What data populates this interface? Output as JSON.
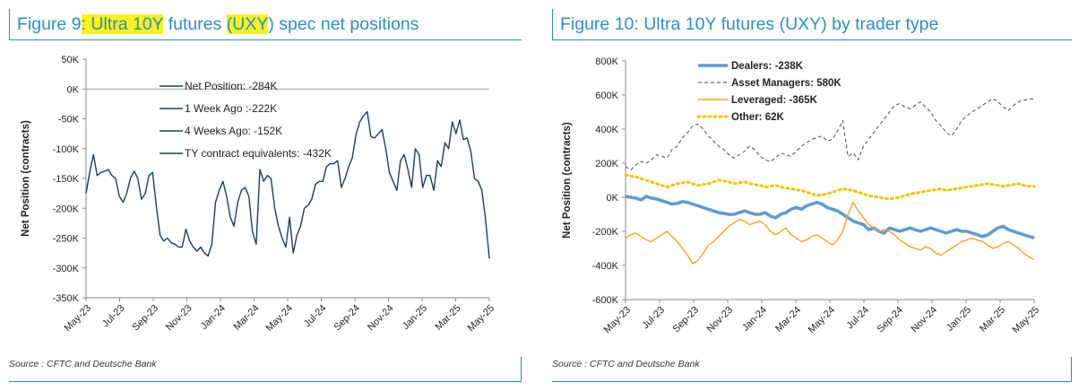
{
  "panels": [
    {
      "title_parts": [
        {
          "text": "Figure 9",
          "highlight": false
        },
        {
          "text": ": Ultra 10Y",
          "highlight": true
        },
        {
          "text": " futures ",
          "highlight": false
        },
        {
          "text": "(UXY",
          "highlight": true
        },
        {
          "text": ") spec net positions",
          "highlight": false
        }
      ],
      "source": "Source : CFTC and Deutsche Bank"
    },
    {
      "title_parts": [
        {
          "text": "Figure 10: Ultra 10Y futures (UXY) by trader type",
          "highlight": false
        }
      ],
      "source": "Source : CFTC and Deutsche Bank"
    }
  ],
  "chart_data": [
    {
      "type": "line",
      "title": "Figure 9: Ultra 10Y futures (UXY) spec net positions",
      "ylabel": "Net Position (contracts)",
      "xlabel": "",
      "ylim": [
        -350,
        50
      ],
      "yticks": [
        50,
        0,
        -50,
        -100,
        -150,
        -200,
        -250,
        -300,
        -350
      ],
      "ytick_labels": [
        "50K",
        "0K",
        "-50K",
        "-100K",
        "-150K",
        "-200K",
        "-250K",
        "-300K",
        "-350K"
      ],
      "xticks": [
        "May-23",
        "Jul-23",
        "Sep-23",
        "Nov-23",
        "Jan-24",
        "Mar-24",
        "May-24",
        "Jul-24",
        "Sep-24",
        "Nov-24",
        "Jan-25",
        "Mar-25",
        "May-25"
      ],
      "x_start": "2023-05",
      "x_end": "2025-05",
      "zero_line": true,
      "legend_placement": "top-center",
      "legend": [
        "Net Position: -284K",
        "1 Week Ago :-222K",
        "4 Weeks Ago: -152K",
        "TY contract equivalents: -432K"
      ],
      "line_color": "#1f3d5c",
      "series": [
        {
          "name": "Net Position: -284K",
          "values": [
            -175,
            -140,
            -110,
            -145,
            -140,
            -138,
            -135,
            -145,
            -150,
            -180,
            -190,
            -175,
            -150,
            -138,
            -150,
            -185,
            -175,
            -145,
            -140,
            -195,
            -245,
            -255,
            -250,
            -258,
            -260,
            -265,
            -265,
            -235,
            -255,
            -265,
            -272,
            -265,
            -275,
            -280,
            -260,
            -190,
            -170,
            -155,
            -180,
            -215,
            -230,
            -190,
            -170,
            -165,
            -180,
            -240,
            -260,
            -135,
            -155,
            -145,
            -150,
            -200,
            -230,
            -250,
            -265,
            -215,
            -275,
            -245,
            -230,
            -200,
            -195,
            -185,
            -160,
            -155,
            -155,
            -130,
            -125,
            -125,
            -120,
            -165,
            -150,
            -130,
            -115,
            -75,
            -55,
            -45,
            -38,
            -80,
            -82,
            -75,
            -68,
            -100,
            -140,
            -155,
            -170,
            -120,
            -110,
            -135,
            -165,
            -100,
            -110,
            -165,
            -145,
            -145,
            -170,
            -120,
            -130,
            -90,
            -100,
            -55,
            -75,
            -52,
            -85,
            -82,
            -105,
            -150,
            -155,
            -170,
            -220,
            -284
          ]
        }
      ]
    },
    {
      "type": "line",
      "title": "Figure 10: Ultra 10Y futures (UXY) by trader type",
      "ylabel": "Net Position (contracts)",
      "xlabel": "",
      "ylim": [
        -600,
        800
      ],
      "yticks": [
        800,
        600,
        400,
        200,
        0,
        -200,
        -400,
        -600
      ],
      "ytick_labels": [
        "800K",
        "600K",
        "400K",
        "200K",
        "0K",
        "-200K",
        "-400K",
        "-600K"
      ],
      "xticks": [
        "May-23",
        "Jul-23",
        "Sep-23",
        "Nov-23",
        "Jan-24",
        "Mar-24",
        "May-24",
        "Jul-24",
        "Sep-24",
        "Nov-24",
        "Jan-25",
        "Mar-25",
        "May-25"
      ],
      "x_start": "2023-05",
      "x_end": "2025-05",
      "legend_placement": "top-left",
      "series": [
        {
          "name": "Dealers: -238K",
          "color": "#5b9bd5",
          "style": "solid-thick",
          "values": [
            5,
            0,
            -5,
            -15,
            5,
            -5,
            -10,
            -20,
            -30,
            -40,
            -35,
            -25,
            -30,
            -40,
            -50,
            -60,
            -70,
            -80,
            -90,
            -95,
            -100,
            -100,
            -90,
            -80,
            -90,
            -100,
            -100,
            -90,
            -110,
            -120,
            -100,
            -90,
            -70,
            -60,
            -70,
            -50,
            -40,
            -30,
            -40,
            -60,
            -70,
            -80,
            -100,
            -120,
            -140,
            -150,
            -160,
            -190,
            -180,
            -200,
            -210,
            -180,
            -190,
            -200,
            -190,
            -180,
            -190,
            -200,
            -190,
            -180,
            -190,
            -200,
            -210,
            -200,
            -190,
            -200,
            -200,
            -210,
            -220,
            -230,
            -220,
            -200,
            -180,
            -170,
            -190,
            -200,
            -210,
            -220,
            -230,
            -238
          ]
        },
        {
          "name": "Asset Managers: 580K",
          "color": "#4a4a4a",
          "style": "dashed",
          "values": [
            180,
            160,
            190,
            210,
            200,
            220,
            250,
            240,
            230,
            280,
            300,
            350,
            380,
            420,
            430,
            400,
            360,
            330,
            300,
            280,
            250,
            230,
            250,
            270,
            300,
            280,
            240,
            220,
            210,
            230,
            260,
            250,
            240,
            270,
            300,
            320,
            340,
            350,
            360,
            330,
            340,
            390,
            450,
            240,
            260,
            220,
            300,
            340,
            380,
            420,
            460,
            500,
            540,
            550,
            530,
            520,
            540,
            560,
            530,
            500,
            450,
            420,
            380,
            360,
            400,
            450,
            480,
            500,
            520,
            540,
            560,
            580,
            560,
            530,
            510,
            540,
            560,
            570,
            575,
            580
          ]
        },
        {
          "name": "Leveraged: -365K",
          "color": "#f2a31b",
          "style": "solid-thin",
          "values": [
            -240,
            -220,
            -210,
            -230,
            -250,
            -260,
            -240,
            -220,
            -200,
            -230,
            -260,
            -300,
            -340,
            -390,
            -370,
            -330,
            -280,
            -260,
            -230,
            -200,
            -170,
            -150,
            -130,
            -140,
            -160,
            -150,
            -140,
            -160,
            -200,
            -220,
            -200,
            -180,
            -220,
            -240,
            -260,
            -250,
            -230,
            -220,
            -240,
            -260,
            -280,
            -250,
            -200,
            -100,
            -30,
            -80,
            -120,
            -160,
            -180,
            -200,
            -190,
            -200,
            -220,
            -250,
            -270,
            -290,
            -300,
            -310,
            -290,
            -300,
            -330,
            -340,
            -320,
            -300,
            -280,
            -260,
            -250,
            -240,
            -250,
            -260,
            -280,
            -300,
            -290,
            -270,
            -260,
            -280,
            -300,
            -330,
            -350,
            -365
          ]
        },
        {
          "name": "Other: 62K",
          "color": "#f2c200",
          "style": "dotted",
          "values": [
            130,
            125,
            120,
            110,
            100,
            90,
            80,
            70,
            60,
            70,
            80,
            85,
            90,
            80,
            70,
            75,
            80,
            90,
            100,
            95,
            90,
            80,
            85,
            90,
            80,
            75,
            70,
            60,
            65,
            70,
            60,
            55,
            50,
            45,
            40,
            30,
            20,
            10,
            15,
            20,
            30,
            40,
            50,
            45,
            40,
            30,
            20,
            10,
            5,
            0,
            -5,
            -10,
            -5,
            0,
            10,
            20,
            25,
            30,
            35,
            40,
            45,
            50,
            40,
            45,
            50,
            55,
            60,
            65,
            70,
            75,
            80,
            75,
            70,
            65,
            70,
            75,
            80,
            70,
            65,
            62
          ]
        }
      ]
    }
  ]
}
